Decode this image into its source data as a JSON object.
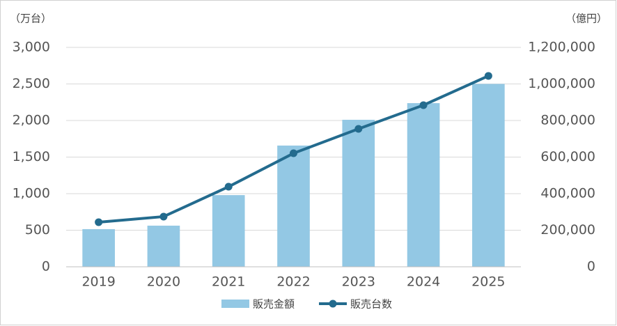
{
  "chart_data": {
    "type": "combo",
    "y_axis_label": "（万台）",
    "y2_axis_label": "（億円）",
    "categories": [
      "2019",
      "2020",
      "2021",
      "2022",
      "2023",
      "2024",
      "2025"
    ],
    "series": [
      {
        "name": "販売金額",
        "type": "bar",
        "axis": "y2",
        "color": "#93c8e4",
        "values": [
          206000,
          225000,
          392000,
          663000,
          804000,
          895000,
          1000000
        ]
      },
      {
        "name": "販売台数",
        "type": "line",
        "axis": "y",
        "color": "#236b8e",
        "values": [
          610,
          686,
          1095,
          1552,
          1886,
          2210,
          2610
        ]
      }
    ],
    "ylim": [
      0,
      3000
    ],
    "yticks": [
      0,
      500,
      {
        "value": 1000,
        "label": "1,000"
      },
      {
        "value": 1500,
        "label": "1,500"
      },
      {
        "value": 2000,
        "label": "2,000"
      },
      {
        "value": 2500,
        "label": "2,500"
      },
      {
        "value": 3000,
        "label": "3,000"
      }
    ],
    "y2lim": [
      0,
      1200000
    ],
    "y2ticks": [
      0,
      {
        "value": 200000,
        "label": "200,000"
      },
      {
        "value": 400000,
        "label": "400,000"
      },
      {
        "value": 600000,
        "label": "600,000"
      },
      {
        "value": 800000,
        "label": "800,000"
      },
      {
        "value": 1000000,
        "label": "1,000,000"
      },
      {
        "value": 1200000,
        "label": "1,200,000"
      }
    ],
    "grid": true,
    "legend": "bottom"
  }
}
